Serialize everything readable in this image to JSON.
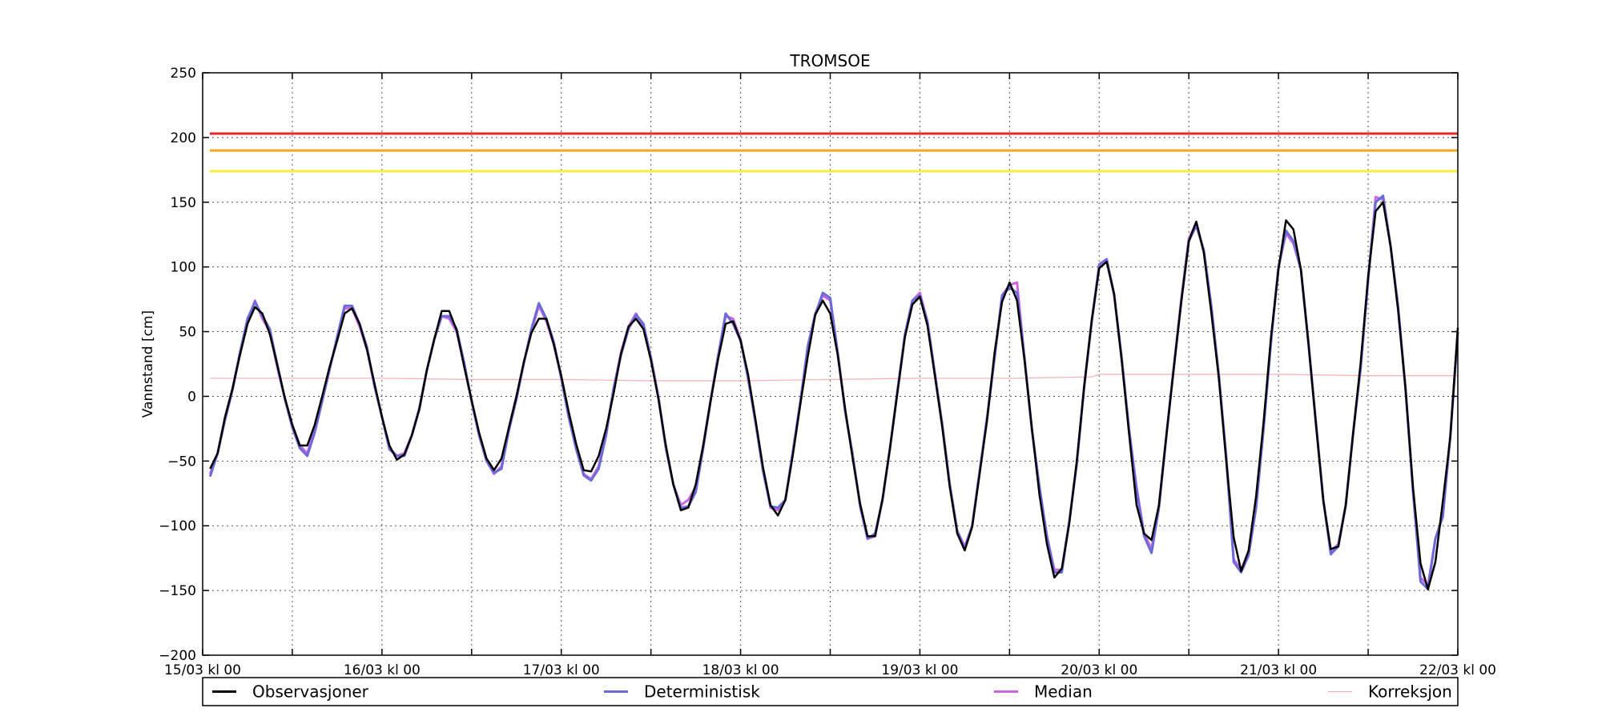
{
  "chart_data": {
    "type": "line",
    "title": "TROMSOE",
    "xlabel": "",
    "ylabel": "Vannstand [cm]",
    "x_unit": "hours since 15/03 kl 00",
    "xlim": [
      0,
      168
    ],
    "ylim": [
      -200,
      250
    ],
    "y_ticks": [
      -200,
      -150,
      -100,
      -50,
      0,
      50,
      100,
      150,
      200,
      250
    ],
    "x_tick_labels": [
      {
        "x": 0,
        "label": "15/03 kl 00"
      },
      {
        "x": 24,
        "label": "16/03 kl 00"
      },
      {
        "x": 48,
        "label": "17/03 kl 00"
      },
      {
        "x": 72,
        "label": "18/03 kl 00"
      },
      {
        "x": 96,
        "label": "19/03 kl 00"
      },
      {
        "x": 120,
        "label": "20/03 kl 00"
      },
      {
        "x": 144,
        "label": "21/03 kl 00"
      },
      {
        "x": 168,
        "label": "22/03 kl 00"
      }
    ],
    "x_minor_ticks": [
      12,
      36,
      60,
      84,
      108,
      132,
      156
    ],
    "grid": true,
    "legend_position": "bottom",
    "threshold_lines": [
      {
        "value": 203,
        "color": "#e8252b"
      },
      {
        "value": 190,
        "color": "#f5a623"
      },
      {
        "value": 174,
        "color": "#f7ee3a"
      }
    ],
    "series": [
      {
        "name": "Observasjoner",
        "color": "#000000",
        "x": [
          1,
          2,
          3,
          4,
          5,
          6,
          7,
          8,
          9,
          10,
          11,
          12,
          13,
          14,
          15,
          16,
          17,
          18,
          19,
          20,
          21,
          22,
          23,
          24,
          25,
          26,
          27,
          28,
          29,
          30,
          31,
          32,
          33,
          34,
          35,
          36,
          37,
          38,
          39,
          40,
          41,
          42,
          43,
          44,
          45,
          46,
          47,
          48,
          49,
          50,
          51,
          52,
          53,
          54,
          55,
          56,
          57,
          58,
          59,
          60,
          61,
          62,
          63,
          64,
          65,
          66,
          67,
          68,
          69,
          70,
          71,
          72,
          73,
          74,
          75,
          76,
          77,
          78,
          79,
          80,
          81,
          82,
          83,
          84,
          85,
          86,
          87,
          88,
          89,
          90,
          91,
          92,
          93,
          94,
          95,
          96,
          97,
          98,
          99,
          100,
          101,
          102,
          103,
          104,
          105,
          106,
          107,
          108,
          109,
          110,
          111,
          112,
          113,
          114,
          115,
          116,
          117,
          118,
          119,
          120,
          121,
          122,
          123,
          124,
          125,
          126,
          127,
          128,
          129,
          130,
          131,
          132,
          133,
          134,
          135,
          136,
          137,
          138,
          139,
          140,
          141,
          142,
          143,
          144,
          145,
          146,
          147,
          148,
          149,
          150,
          151,
          152,
          153,
          154,
          155,
          156,
          157,
          158,
          159,
          160,
          161,
          162,
          163,
          164,
          165,
          166,
          167,
          168
        ],
        "values": [
          -56,
          -44,
          -16,
          6,
          32,
          56,
          69,
          64,
          48,
          24,
          -1,
          -22,
          -38,
          -38,
          -22,
          0,
          23,
          43,
          64,
          68,
          56,
          36,
          10,
          -16,
          -38,
          -49,
          -45,
          -30,
          -10,
          20,
          44,
          66,
          66,
          51,
          23,
          -3,
          -28,
          -48,
          -57,
          -48,
          -24,
          0,
          27,
          49,
          60,
          60,
          40,
          16,
          -12,
          -37,
          -57,
          -58,
          -46,
          -25,
          2,
          33,
          54,
          60,
          52,
          28,
          -2,
          -38,
          -68,
          -88,
          -86,
          -68,
          -38,
          -3,
          29,
          56,
          58,
          43,
          17,
          -18,
          -55,
          -84,
          -92,
          -80,
          -45,
          -6,
          31,
          63,
          74,
          64,
          32,
          -10,
          -48,
          -83,
          -108,
          -108,
          -79,
          -40,
          3,
          46,
          71,
          77,
          55,
          16,
          -24,
          -70,
          -106,
          -119,
          -101,
          -60,
          -18,
          34,
          73,
          88,
          74,
          28,
          -25,
          -76,
          -114,
          -140,
          -133,
          -98,
          -50,
          8,
          59,
          99,
          104,
          79,
          28,
          -29,
          -84,
          -106,
          -111,
          -84,
          -30,
          23,
          74,
          120,
          135,
          111,
          65,
          15,
          -50,
          -109,
          -135,
          -119,
          -77,
          -20,
          46,
          98,
          136,
          129,
          98,
          41,
          -21,
          -81,
          -118,
          -116,
          -84,
          -28,
          26,
          93,
          143,
          150,
          116,
          67,
          6,
          -70,
          -129,
          -149,
          -128,
          -81,
          -31,
          53
        ]
      },
      {
        "name": "Deterministisk",
        "color": "#6b6bd8",
        "x": [
          1,
          2,
          3,
          4,
          5,
          6,
          7,
          8,
          9,
          10,
          11,
          12,
          13,
          14,
          15,
          16,
          17,
          18,
          19,
          20,
          21,
          22,
          23,
          24,
          25,
          26,
          27,
          28,
          29,
          30,
          31,
          32,
          33,
          34,
          35,
          36,
          37,
          38,
          39,
          40,
          41,
          42,
          43,
          44,
          45,
          46,
          47,
          48,
          49,
          50,
          51,
          52,
          53,
          54,
          55,
          56,
          57,
          58,
          59,
          60,
          61,
          62,
          63,
          64,
          65,
          66,
          67,
          68,
          69,
          70,
          71,
          72,
          73,
          74,
          75,
          76,
          77,
          78,
          79,
          80,
          81,
          82,
          83,
          84,
          85,
          86,
          87,
          88,
          89,
          90,
          91,
          92,
          93,
          94,
          95,
          96,
          97,
          98,
          99,
          100,
          101,
          102,
          103,
          104,
          105,
          106,
          107,
          108,
          109,
          110,
          111,
          112,
          113,
          114,
          115,
          116,
          117,
          118,
          119,
          120,
          121,
          122,
          123,
          124,
          125,
          126,
          127,
          128,
          129,
          130,
          131,
          132,
          133,
          134,
          135,
          136,
          137,
          138,
          139,
          140,
          141,
          142,
          143,
          144,
          145,
          146,
          147,
          148,
          149,
          150,
          151,
          152,
          153,
          154,
          155,
          156,
          157,
          158,
          159,
          160,
          161,
          162,
          163,
          164,
          165,
          166,
          167,
          168
        ],
        "values": [
          -62,
          -44,
          -18,
          5,
          34,
          60,
          73,
          62,
          52,
          24,
          -2,
          -24,
          -40,
          -46,
          -28,
          -4,
          21,
          46,
          70,
          70,
          56,
          38,
          8,
          -16,
          -41,
          -46,
          -46,
          -30,
          -9,
          20,
          44,
          62,
          62,
          52,
          26,
          -4,
          -30,
          -50,
          -59,
          -56,
          -26,
          -2,
          26,
          52,
          72,
          60,
          42,
          14,
          -16,
          -41,
          -61,
          -65,
          -56,
          -30,
          6,
          32,
          52,
          63,
          56,
          30,
          -1,
          -40,
          -68,
          -86,
          -85,
          -74,
          -40,
          -3,
          31,
          64,
          56,
          43,
          14,
          -20,
          -58,
          -85,
          -86,
          -80,
          -43,
          -4,
          39,
          63,
          80,
          76,
          34,
          -12,
          -45,
          -85,
          -110,
          -106,
          -80,
          -40,
          4,
          48,
          74,
          78,
          58,
          18,
          -22,
          -68,
          -104,
          -118,
          -100,
          -58,
          -16,
          30,
          78,
          84,
          80,
          30,
          -26,
          -70,
          -108,
          -136,
          -136,
          -96,
          -52,
          8,
          58,
          102,
          106,
          79,
          30,
          -26,
          -72,
          -108,
          -121,
          -86,
          -30,
          23,
          74,
          120,
          132,
          113,
          70,
          17,
          -48,
          -128,
          -136,
          -123,
          -86,
          -25,
          42,
          100,
          128,
          120,
          98,
          41,
          -20,
          -80,
          -122,
          -116,
          -84,
          -28,
          22,
          91,
          150,
          155,
          116,
          70,
          6,
          -72,
          -143,
          -149,
          -110,
          -93,
          -30,
          50
        ]
      },
      {
        "name": "Median",
        "color": "#cc66e0",
        "x": [
          1,
          2,
          3,
          4,
          5,
          6,
          7,
          8,
          9,
          10,
          11,
          12,
          13,
          14,
          15,
          16,
          17,
          18,
          19,
          20,
          21,
          22,
          23,
          24,
          25,
          26,
          27,
          28,
          29,
          30,
          31,
          32,
          33,
          34,
          35,
          36,
          37,
          38,
          39,
          40,
          41,
          42,
          43,
          44,
          45,
          46,
          47,
          48,
          49,
          50,
          51,
          52,
          53,
          54,
          55,
          56,
          57,
          58,
          59,
          60,
          61,
          62,
          63,
          64,
          65,
          66,
          67,
          68,
          69,
          70,
          71,
          72,
          73,
          74,
          75,
          76,
          77,
          78,
          79,
          80,
          81,
          82,
          83,
          84,
          85,
          86,
          87,
          88,
          89,
          90,
          91,
          92,
          93,
          94,
          95,
          96,
          97,
          98,
          99,
          100,
          101,
          102,
          103,
          104,
          105,
          106,
          107,
          108,
          109,
          110,
          111,
          112,
          113,
          114,
          115,
          116,
          117,
          118,
          119,
          120,
          121,
          122,
          123,
          124,
          125,
          126,
          127,
          128,
          129,
          130,
          131,
          132,
          133,
          134,
          135,
          136,
          137,
          138,
          139,
          140,
          141,
          142,
          143,
          144,
          145,
          146,
          147,
          148,
          149,
          150,
          151,
          152,
          153,
          154,
          155,
          156,
          157,
          158,
          159,
          160,
          161,
          162,
          163,
          164,
          165,
          166,
          167,
          168
        ],
        "values": [
          -60,
          -44,
          -16,
          6,
          34,
          58,
          74,
          60,
          50,
          22,
          -2,
          -22,
          -38,
          -44,
          -26,
          -2,
          22,
          44,
          68,
          68,
          54,
          36,
          8,
          -16,
          -40,
          -46,
          -44,
          -30,
          -10,
          20,
          44,
          62,
          60,
          50,
          24,
          -4,
          -30,
          -50,
          -60,
          -54,
          -24,
          0,
          26,
          50,
          70,
          58,
          40,
          14,
          -16,
          -40,
          -60,
          -64,
          -54,
          -28,
          6,
          34,
          54,
          64,
          54,
          30,
          0,
          -40,
          -68,
          -84,
          -80,
          -70,
          -38,
          -2,
          32,
          62,
          60,
          44,
          14,
          -20,
          -56,
          -86,
          -88,
          -80,
          -42,
          -4,
          38,
          64,
          78,
          74,
          34,
          -12,
          -46,
          -84,
          -110,
          -108,
          -80,
          -40,
          4,
          48,
          74,
          80,
          58,
          18,
          -22,
          -68,
          -104,
          -116,
          -100,
          -58,
          -16,
          30,
          78,
          86,
          88,
          30,
          -26,
          -70,
          -108,
          -134,
          -134,
          -96,
          -52,
          8,
          58,
          100,
          106,
          78,
          30,
          -26,
          -70,
          -106,
          -118,
          -84,
          -30,
          24,
          76,
          122,
          134,
          112,
          70,
          17,
          -46,
          -126,
          -134,
          -120,
          -84,
          -24,
          44,
          100,
          126,
          118,
          98,
          42,
          -20,
          -80,
          -120,
          -114,
          -84,
          -28,
          22,
          90,
          154,
          152,
          116,
          68,
          6,
          -74,
          -140,
          -146,
          -110,
          -92,
          -30,
          50
        ]
      },
      {
        "name": "Korreksjon",
        "color": "#f4b0b0",
        "x": [
          1,
          12,
          24,
          36,
          48,
          60,
          72,
          84,
          96,
          108,
          119,
          120,
          132,
          144,
          156,
          168
        ],
        "values": [
          14,
          14,
          14,
          13,
          13,
          12,
          12,
          13,
          14,
          14,
          15,
          17,
          17,
          17,
          16,
          16
        ]
      }
    ]
  }
}
